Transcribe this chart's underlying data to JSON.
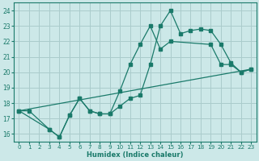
{
  "xlabel": "Humidex (Indice chaleur)",
  "bg_color": "#cce8e8",
  "grid_color": "#aacccc",
  "line_color": "#1a7a6a",
  "xlim": [
    -0.5,
    23.5
  ],
  "ylim": [
    15.5,
    24.5
  ],
  "yticks": [
    16,
    17,
    18,
    19,
    20,
    21,
    22,
    23,
    24
  ],
  "xticks": [
    0,
    1,
    2,
    3,
    4,
    5,
    6,
    7,
    8,
    9,
    10,
    11,
    12,
    13,
    14,
    15,
    16,
    17,
    18,
    19,
    20,
    21,
    22,
    23
  ],
  "line1_x": [
    0,
    1,
    3,
    4,
    5,
    6,
    7,
    8,
    9,
    10,
    11,
    12,
    13,
    14,
    15,
    16,
    17,
    18,
    19,
    20,
    21,
    22,
    23
  ],
  "line1_y": [
    17.5,
    17.5,
    16.3,
    15.8,
    17.2,
    18.3,
    17.5,
    17.3,
    17.3,
    17.8,
    18.3,
    18.5,
    20.5,
    23.0,
    24.0,
    22.5,
    22.7,
    22.8,
    22.7,
    21.8,
    20.6,
    20.0,
    20.2
  ],
  "line2_x": [
    0,
    3,
    4,
    5,
    6,
    7,
    8,
    9,
    10,
    11,
    12,
    13,
    14,
    15,
    19,
    20,
    21,
    22,
    23
  ],
  "line2_y": [
    17.5,
    16.3,
    15.8,
    17.2,
    18.3,
    17.5,
    17.3,
    17.3,
    18.8,
    20.5,
    21.8,
    23.0,
    21.5,
    22.0,
    21.8,
    20.5,
    20.5,
    20.0,
    20.2
  ],
  "line3_x": [
    0,
    23
  ],
  "line3_y": [
    17.5,
    20.2
  ]
}
